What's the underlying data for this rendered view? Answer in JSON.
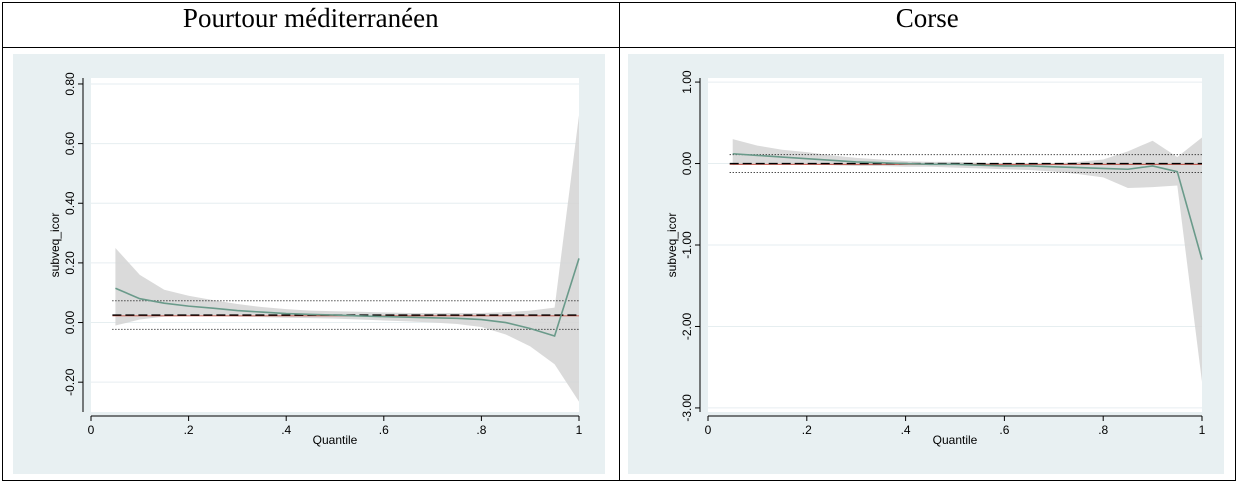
{
  "chart_data": [
    {
      "type": "line",
      "title": "Pourtour méditerranéen",
      "xlabel": "Quantile",
      "ylabel": "subveq_icor",
      "xlim": [
        0,
        1
      ],
      "ylim": [
        -0.3,
        0.82
      ],
      "xticks": [
        0,
        0.2,
        0.4,
        0.6,
        0.8,
        1
      ],
      "xtick_labels": [
        "0",
        ".2",
        ".4",
        ".6",
        ".8",
        "1"
      ],
      "yticks": [
        -0.2,
        0,
        0.2,
        0.4,
        0.6,
        0.8
      ],
      "ytick_labels": [
        "-0.20",
        "0.00",
        "0.20",
        "0.40",
        "0.60",
        "0.80"
      ],
      "grid": true,
      "colors": {
        "estimate": "#6a9a8a",
        "band": "#d3d3d3",
        "plot_bg": "#ffffff",
        "outer_bg": "#e8f0f2",
        "ols_ci": "#c08a3a"
      },
      "x": [
        0.05,
        0.1,
        0.15,
        0.2,
        0.25,
        0.3,
        0.35,
        0.4,
        0.45,
        0.5,
        0.55,
        0.6,
        0.65,
        0.7,
        0.75,
        0.8,
        0.85,
        0.9,
        0.95,
        1.0
      ],
      "estimate": [
        0.115,
        0.08,
        0.065,
        0.055,
        0.048,
        0.04,
        0.035,
        0.03,
        0.027,
        0.025,
        0.022,
        0.02,
        0.018,
        0.016,
        0.014,
        0.01,
        0.0,
        -0.02,
        -0.045,
        0.215
      ],
      "ci_upper": [
        0.25,
        0.16,
        0.11,
        0.09,
        0.075,
        0.062,
        0.052,
        0.045,
        0.04,
        0.038,
        0.036,
        0.034,
        0.032,
        0.032,
        0.032,
        0.032,
        0.035,
        0.04,
        0.05,
        0.695
      ],
      "ci_lower": [
        -0.01,
        0.01,
        0.02,
        0.022,
        0.022,
        0.02,
        0.018,
        0.016,
        0.015,
        0.013,
        0.01,
        0.007,
        0.004,
        0.0,
        -0.005,
        -0.015,
        -0.04,
        -0.08,
        -0.14,
        -0.265
      ],
      "ols_estimate": 0.025,
      "ols_ci": [
        -0.023,
        0.073
      ]
    },
    {
      "type": "line",
      "title": "Corse",
      "xlabel": "Quantile",
      "ylabel": "subveq_icor",
      "xlim": [
        0,
        1
      ],
      "ylim": [
        -3.05,
        1.05
      ],
      "xticks": [
        0,
        0.2,
        0.4,
        0.6,
        0.8,
        1
      ],
      "xtick_labels": [
        "0",
        ".2",
        ".4",
        ".6",
        ".8",
        "1"
      ],
      "yticks": [
        -3,
        -2,
        -1,
        0,
        1
      ],
      "ytick_labels": [
        "-3.00",
        "-2.00",
        "-1.00",
        "0.00",
        "1.00"
      ],
      "grid": true,
      "colors": {
        "estimate": "#6a9a8a",
        "band": "#d3d3d3",
        "plot_bg": "#ffffff",
        "outer_bg": "#e8f0f2",
        "ols_ci": "#c08a3a"
      },
      "x": [
        0.05,
        0.1,
        0.15,
        0.2,
        0.25,
        0.3,
        0.35,
        0.4,
        0.45,
        0.5,
        0.55,
        0.6,
        0.65,
        0.7,
        0.75,
        0.8,
        0.85,
        0.9,
        0.95,
        1.0
      ],
      "estimate": [
        0.12,
        0.1,
        0.08,
        0.06,
        0.04,
        0.02,
        0.01,
        0.0,
        -0.01,
        -0.01,
        -0.02,
        -0.03,
        -0.03,
        -0.04,
        -0.05,
        -0.06,
        -0.07,
        -0.03,
        -0.1,
        -1.18
      ],
      "ci_upper": [
        0.3,
        0.22,
        0.17,
        0.14,
        0.1,
        0.07,
        0.05,
        0.03,
        0.02,
        0.02,
        0.01,
        0.0,
        -0.01,
        0.0,
        0.02,
        0.05,
        0.15,
        0.28,
        0.08,
        0.32
      ],
      "ci_lower": [
        -0.02,
        0.0,
        0.0,
        -0.01,
        -0.02,
        -0.03,
        -0.03,
        -0.04,
        -0.04,
        -0.05,
        -0.06,
        -0.07,
        -0.08,
        -0.1,
        -0.13,
        -0.17,
        -0.3,
        -0.29,
        -0.27,
        -2.68
      ],
      "ols_estimate": 0.0,
      "ols_ci": [
        -0.11,
        0.11
      ]
    }
  ]
}
